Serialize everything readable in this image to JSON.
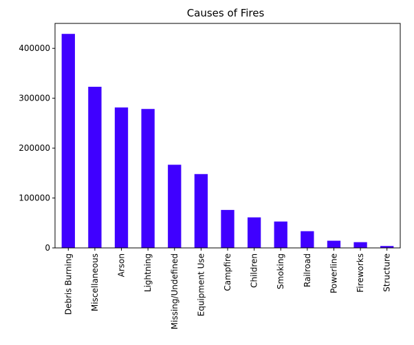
{
  "chart_data": {
    "type": "bar",
    "title": "Causes of Fires",
    "xlabel": "",
    "ylabel": "",
    "categories": [
      "Debris Burning",
      "Miscellaneous",
      "Arson",
      "Lightning",
      "Missing/Undefined",
      "Equipment Use",
      "Campfire",
      "Children",
      "Smoking",
      "Railroad",
      "Powerline",
      "Fireworks",
      "Structure"
    ],
    "values": [
      429000,
      323000,
      281500,
      278500,
      166700,
      148000,
      76100,
      61200,
      52900,
      33500,
      14400,
      11500,
      3800
    ],
    "ylim": [
      0,
      450000
    ],
    "yticks": [
      0,
      100000,
      200000,
      300000,
      400000
    ],
    "ytick_labels": [
      "0",
      "100000",
      "200000",
      "300000",
      "400000"
    ],
    "bar_color": "#3f00ff",
    "grid": false,
    "legend": "none"
  }
}
